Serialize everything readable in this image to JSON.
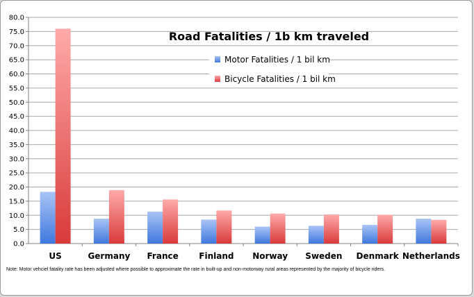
{
  "chart_data": {
    "type": "bar",
    "title": "Road Fatalities / 1b km traveled",
    "xlabel": "",
    "ylabel": "",
    "categories": [
      "US",
      "Germany",
      "France",
      "Finland",
      "Norway",
      "Sweden",
      "Denmark",
      "Netherlands"
    ],
    "series": [
      {
        "name": "Motor Fatalities / 1 bil km",
        "values": [
          18.3,
          8.8,
          11.3,
          8.5,
          6.0,
          6.3,
          6.6,
          8.8
        ],
        "color": "#5b8fe8"
      },
      {
        "name": "Bicycle Fatalities / 1 bil km",
        "values": [
          76.0,
          18.9,
          15.6,
          11.7,
          10.6,
          10.3,
          10.2,
          8.4
        ],
        "color": "#e04848"
      }
    ],
    "ylim": [
      0,
      80
    ],
    "ytick_step": 5,
    "ytick_labels": [
      "0.0",
      "5.0",
      "10.0",
      "15.0",
      "20.0",
      "25.0",
      "30.0",
      "35.0",
      "40.0",
      "45.0",
      "50.0",
      "55.0",
      "60.0",
      "65.0",
      "70.0",
      "75.0",
      "80.0"
    ],
    "grid": true,
    "legend_position": "top-center"
  },
  "note": "Note: Motor vehciel fatality rate has been adjusted where possible to approximate the rate in built-up and non-motorway rural areas represented by the majority of bicycle riders."
}
